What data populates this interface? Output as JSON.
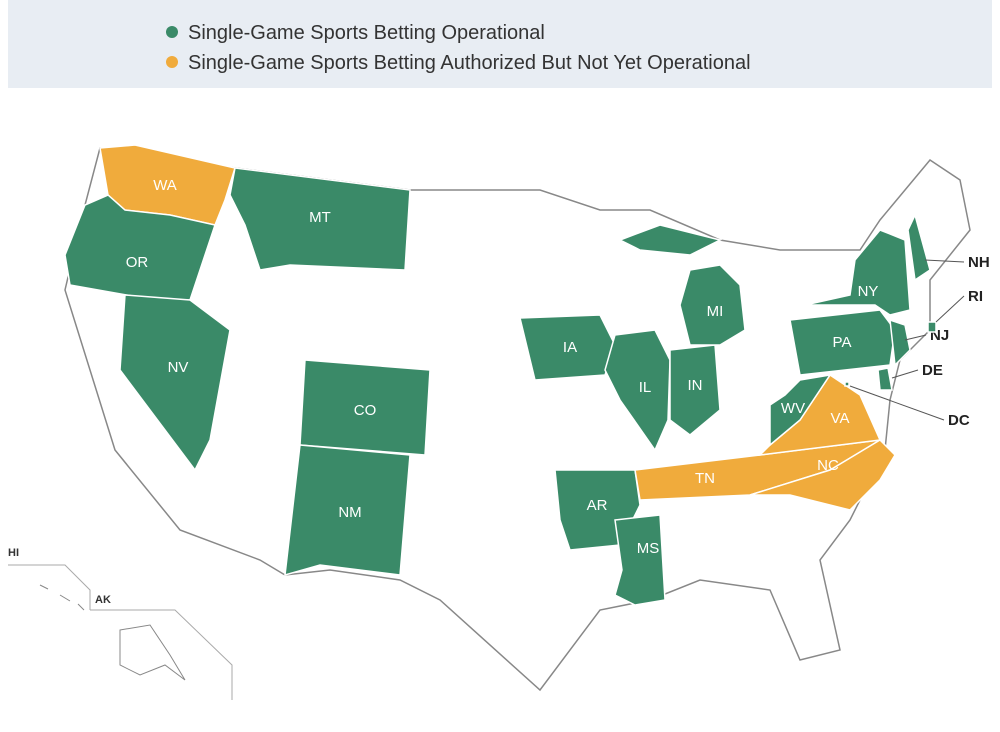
{
  "legend": [
    {
      "label": "Single-Game Sports Betting Operational",
      "color": "#3a8a68"
    },
    {
      "label": "Single-Game Sports Betting Authorized But Not Yet Operational",
      "color": "#f0ab3c"
    }
  ],
  "states": [
    {
      "label": "WA",
      "color": "#f0ab3c"
    },
    {
      "label": "OR",
      "color": "#3a8a68"
    },
    {
      "label": "NV",
      "color": "#3a8a68"
    },
    {
      "label": "MT",
      "color": "#3a8a68"
    },
    {
      "label": "CO",
      "color": "#3a8a68"
    },
    {
      "label": "NM",
      "color": "#3a8a68"
    },
    {
      "label": "IA",
      "color": "#3a8a68"
    },
    {
      "label": "IL",
      "color": "#3a8a68"
    },
    {
      "label": "IN",
      "color": "#3a8a68"
    },
    {
      "label": "MI",
      "color": "#3a8a68"
    },
    {
      "label": "AR",
      "color": "#3a8a68"
    },
    {
      "label": "MS",
      "color": "#3a8a68"
    },
    {
      "label": "TN",
      "color": "#f0ab3c"
    },
    {
      "label": "NC",
      "color": "#f0ab3c"
    },
    {
      "label": "VA",
      "color": "#f0ab3c"
    },
    {
      "label": "WV",
      "color": "#3a8a68"
    },
    {
      "label": "PA",
      "color": "#3a8a68"
    },
    {
      "label": "NY",
      "color": "#3a8a68"
    },
    {
      "label": "NJ",
      "color": "#3a8a68"
    },
    {
      "label": "DE",
      "color": "#3a8a68"
    },
    {
      "label": "NH",
      "color": "#3a8a68"
    },
    {
      "label": "RI",
      "color": "#3a8a68"
    },
    {
      "label": "DC",
      "color": "#3a8a68"
    }
  ],
  "insets": [
    {
      "label": "HI"
    },
    {
      "label": "AK"
    }
  ]
}
